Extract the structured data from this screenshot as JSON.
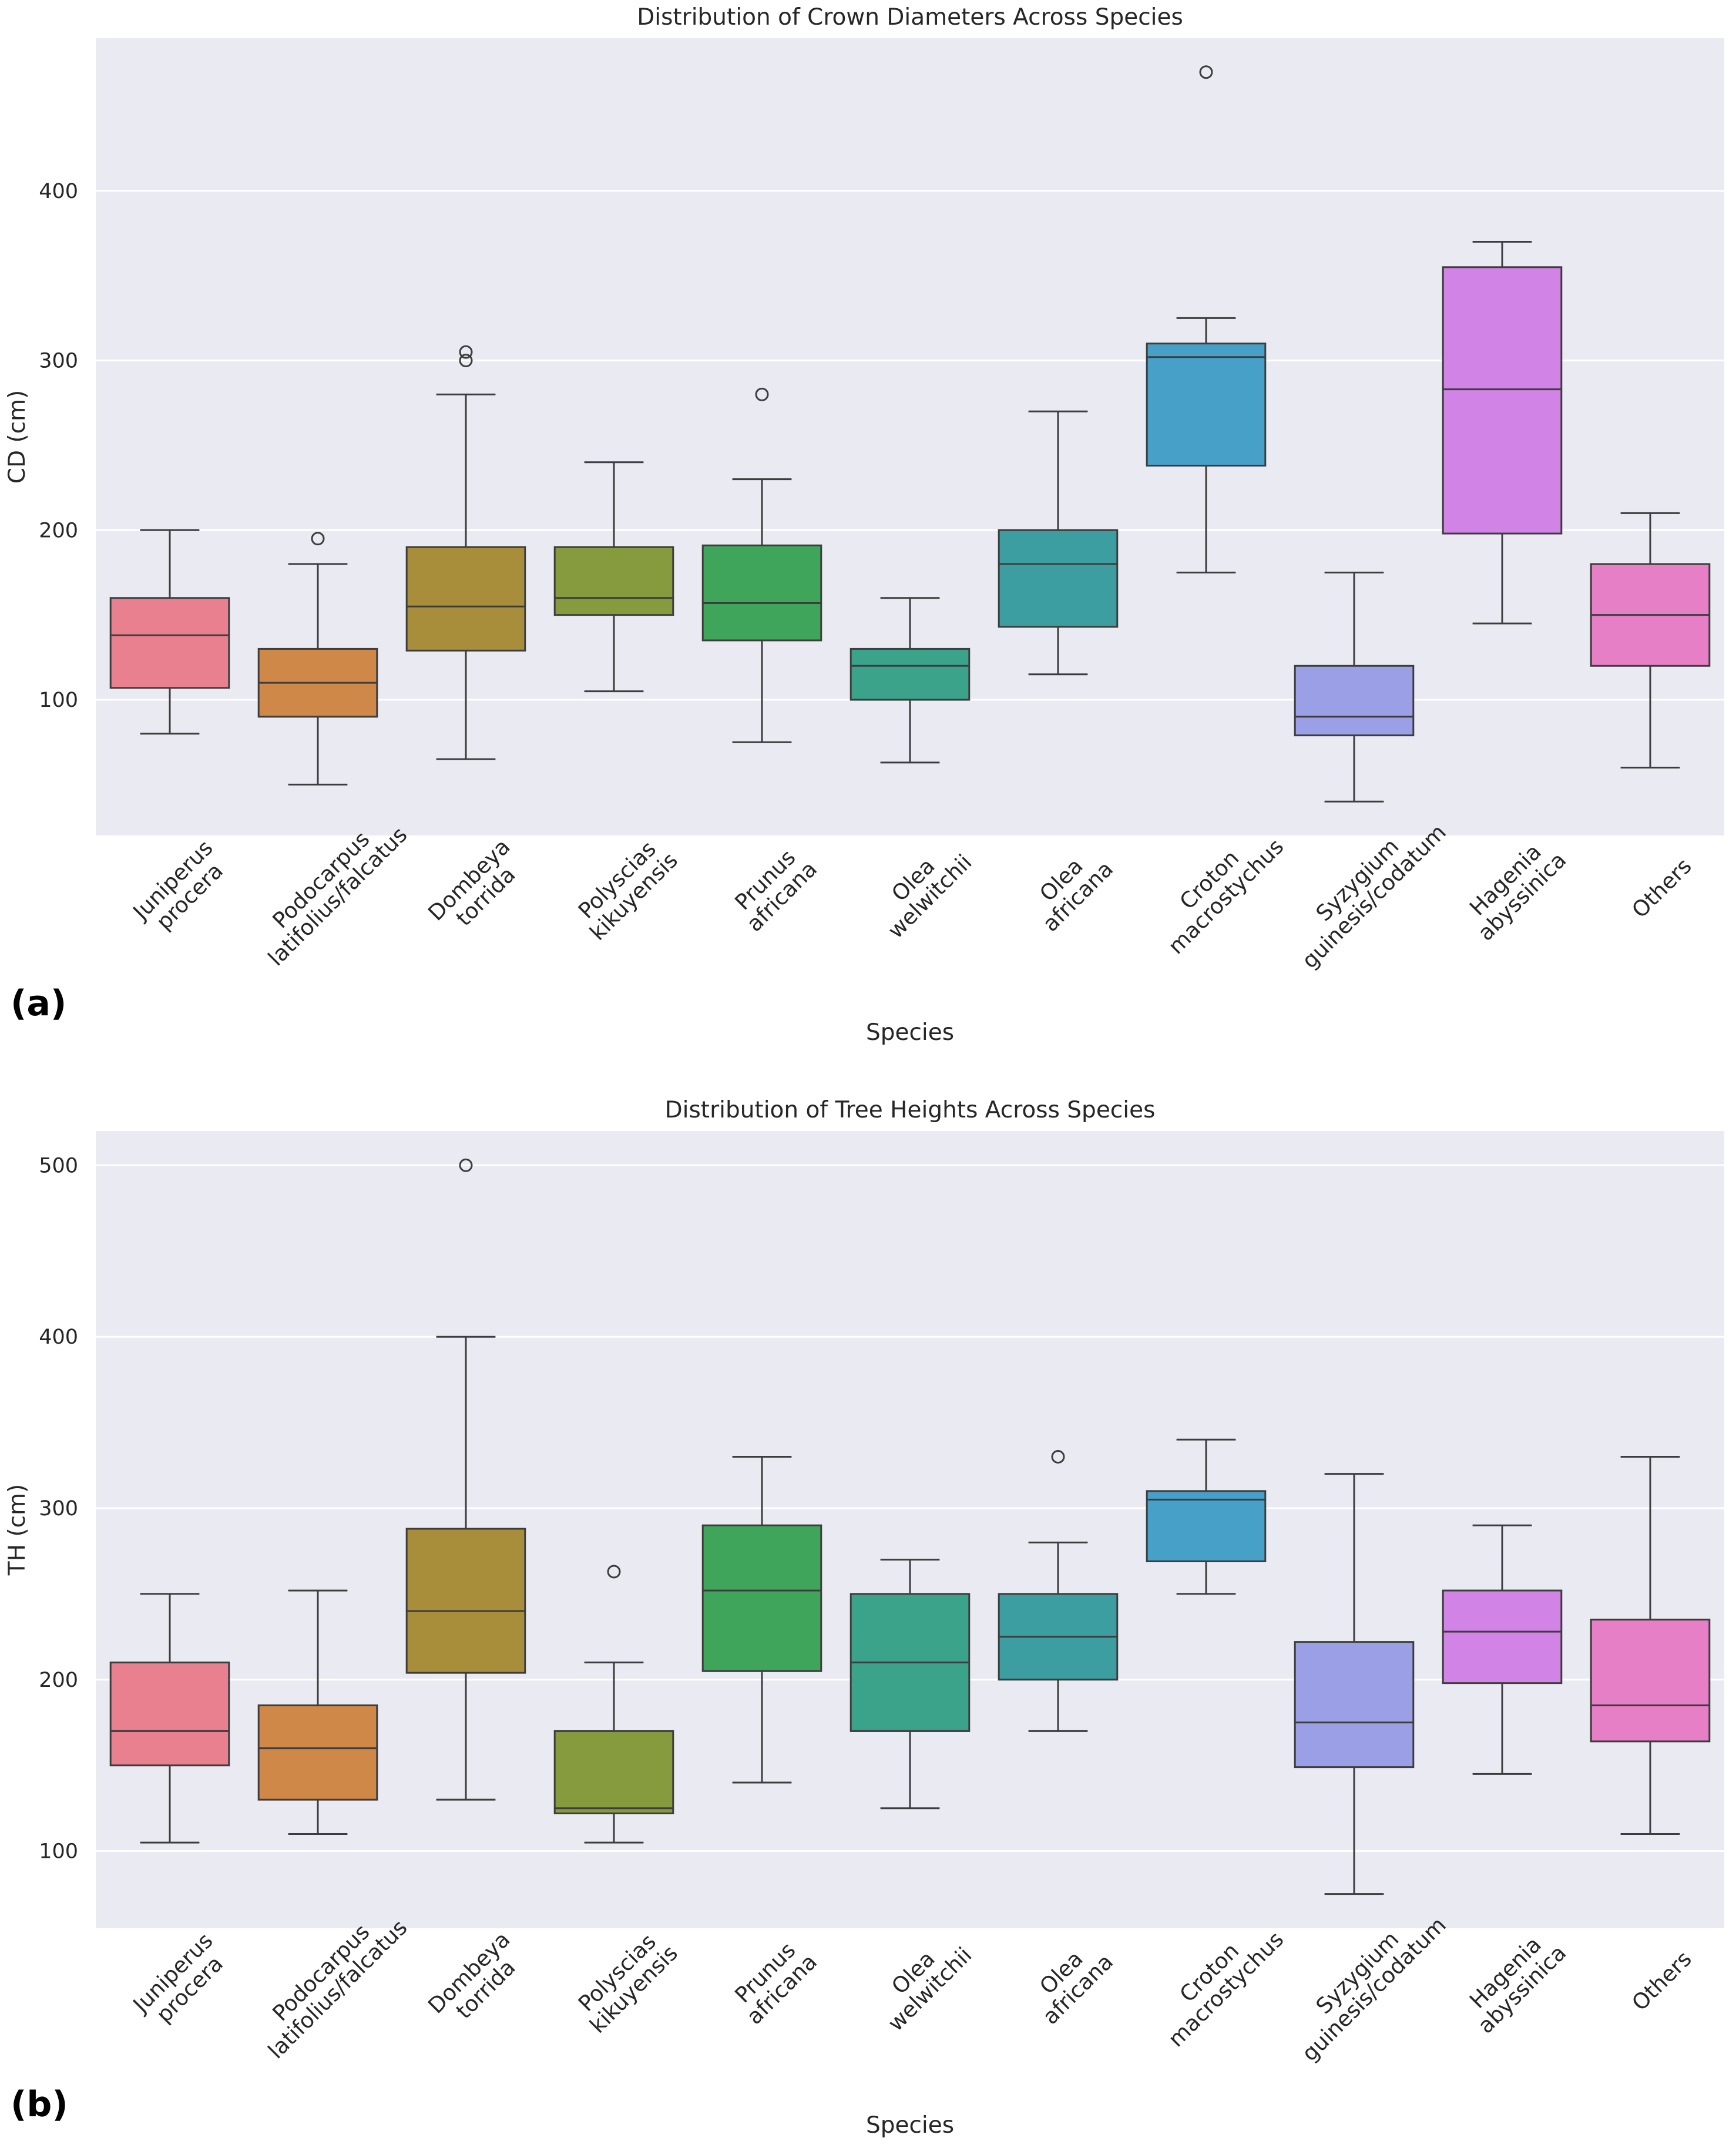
{
  "chart_data": [
    {
      "type": "box",
      "panel_label": "(a)",
      "title": "Distribution of Crown Diameters Across Species",
      "xlabel": "Species",
      "ylabel": "CD (cm)",
      "ylim": [
        20,
        490
      ],
      "yticks": [
        100,
        200,
        300,
        400
      ],
      "grid": true,
      "categories": [
        {
          "name": [
            "Juniperus",
            "procera"
          ],
          "color": "#e88090",
          "whislo": 80,
          "q1": 107,
          "med": 138,
          "q3": 160,
          "whishi": 200,
          "fliers": []
        },
        {
          "name": [
            "Podocarpus",
            "latifolius/falcatus"
          ],
          "color": "#d08848",
          "whislo": 50,
          "q1": 90,
          "med": 110,
          "q3": 130,
          "whishi": 180,
          "fliers": [
            195
          ]
        },
        {
          "name": [
            "Dombeya",
            "torrida"
          ],
          "color": "#a88e3a",
          "whislo": 65,
          "q1": 129,
          "med": 155,
          "q3": 190,
          "whishi": 280,
          "fliers": [
            300,
            305
          ]
        },
        {
          "name": [
            "Polyscias",
            "kikuyensis"
          ],
          "color": "#869a3e",
          "whislo": 105,
          "q1": 150,
          "med": 160,
          "q3": 190,
          "whishi": 240,
          "fliers": []
        },
        {
          "name": [
            "Prunus",
            "africana"
          ],
          "color": "#3fa55a",
          "whislo": 75,
          "q1": 135,
          "med": 157,
          "q3": 191,
          "whishi": 230,
          "fliers": [
            280
          ]
        },
        {
          "name": [
            "Olea",
            "welwitchii"
          ],
          "color": "#3aa38a",
          "whislo": 63,
          "q1": 100,
          "med": 120,
          "q3": 130,
          "whishi": 160,
          "fliers": []
        },
        {
          "name": [
            "Olea",
            "africana"
          ],
          "color": "#3c9ea0",
          "whislo": 115,
          "q1": 143,
          "med": 180,
          "q3": 200,
          "whishi": 270,
          "fliers": []
        },
        {
          "name": [
            "Croton",
            "macrostychus"
          ],
          "color": "#46a0c8",
          "whislo": 175,
          "q1": 238,
          "med": 302,
          "q3": 310,
          "whishi": 325,
          "fliers": [
            470
          ]
        },
        {
          "name": [
            "Syzygium",
            "guinesis/codatum"
          ],
          "color": "#9ba0e6",
          "whislo": 40,
          "q1": 79,
          "med": 90,
          "q3": 120,
          "whishi": 175,
          "fliers": []
        },
        {
          "name": [
            "Hagenia",
            "abyssinica"
          ],
          "color": "#d283e6",
          "whislo": 145,
          "q1": 198,
          "med": 283,
          "q3": 355,
          "whishi": 370,
          "fliers": []
        },
        {
          "name": [
            "Others"
          ],
          "color": "#e77fc6",
          "whislo": 60,
          "q1": 120,
          "med": 150,
          "q3": 180,
          "whishi": 210,
          "fliers": []
        }
      ]
    },
    {
      "type": "box",
      "panel_label": "(b)",
      "title": "Distribution of Tree Heights Across Species",
      "xlabel": "Species",
      "ylabel": "TH (cm)",
      "ylim": [
        55,
        520
      ],
      "yticks": [
        100,
        200,
        300,
        400,
        500
      ],
      "grid": true,
      "categories": [
        {
          "name": [
            "Juniperus",
            "procera"
          ],
          "color": "#e88090",
          "whislo": 105,
          "q1": 150,
          "med": 170,
          "q3": 210,
          "whishi": 250,
          "fliers": []
        },
        {
          "name": [
            "Podocarpus",
            "latifolius/falcatus"
          ],
          "color": "#d08848",
          "whislo": 110,
          "q1": 130,
          "med": 160,
          "q3": 185,
          "whishi": 252,
          "fliers": []
        },
        {
          "name": [
            "Dombeya",
            "torrida"
          ],
          "color": "#a88e3a",
          "whislo": 130,
          "q1": 204,
          "med": 240,
          "q3": 288,
          "whishi": 400,
          "fliers": [
            500
          ]
        },
        {
          "name": [
            "Polyscias",
            "kikuyensis"
          ],
          "color": "#869a3e",
          "whislo": 105,
          "q1": 122,
          "med": 125,
          "q3": 170,
          "whishi": 210,
          "fliers": [
            263
          ]
        },
        {
          "name": [
            "Prunus",
            "africana"
          ],
          "color": "#3fa55a",
          "whislo": 140,
          "q1": 205,
          "med": 252,
          "q3": 290,
          "whishi": 330,
          "fliers": []
        },
        {
          "name": [
            "Olea",
            "welwitchii"
          ],
          "color": "#3aa38a",
          "whislo": 125,
          "q1": 170,
          "med": 210,
          "q3": 250,
          "whishi": 270,
          "fliers": []
        },
        {
          "name": [
            "Olea",
            "africana"
          ],
          "color": "#3c9ea0",
          "whislo": 170,
          "q1": 200,
          "med": 225,
          "q3": 250,
          "whishi": 280,
          "fliers": [
            330
          ]
        },
        {
          "name": [
            "Croton",
            "macrostychus"
          ],
          "color": "#46a0c8",
          "whislo": 250,
          "q1": 269,
          "med": 305,
          "q3": 310,
          "whishi": 340,
          "fliers": []
        },
        {
          "name": [
            "Syzygium",
            "guinesis/codatum"
          ],
          "color": "#9ba0e6",
          "whislo": 75,
          "q1": 149,
          "med": 175,
          "q3": 222,
          "whishi": 320,
          "fliers": []
        },
        {
          "name": [
            "Hagenia",
            "abyssinica"
          ],
          "color": "#d283e6",
          "whislo": 145,
          "q1": 198,
          "med": 228,
          "q3": 252,
          "whishi": 290,
          "fliers": []
        },
        {
          "name": [
            "Others"
          ],
          "color": "#e77fc6",
          "whislo": 110,
          "q1": 164,
          "med": 185,
          "q3": 235,
          "whishi": 330,
          "fliers": []
        }
      ]
    }
  ]
}
